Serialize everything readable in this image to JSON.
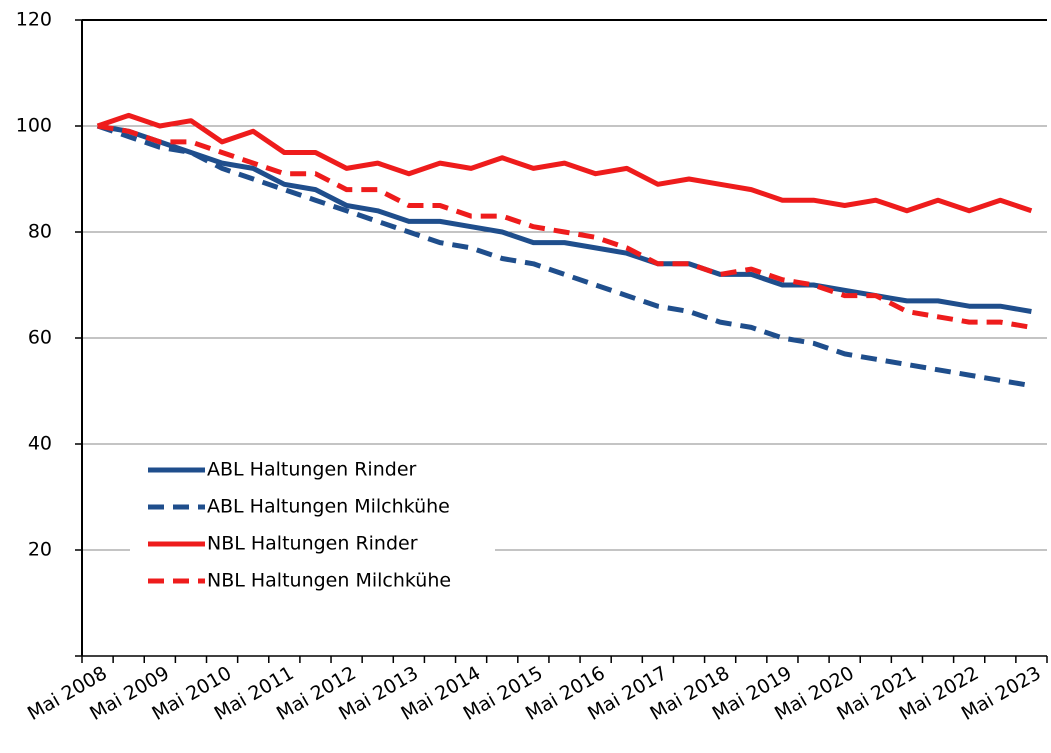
{
  "chart_data": {
    "type": "line",
    "categories": [
      "Mai 2008",
      null,
      "Mai 2009",
      null,
      "Mai 2010",
      null,
      "Mai 2011",
      null,
      "Mai 2012",
      null,
      "Mai 2013",
      null,
      "Mai 2014",
      null,
      "Mai 2015",
      null,
      "Mai 2016",
      null,
      "Mai 2017",
      null,
      "Mai 2018",
      null,
      "Mai 2019",
      null,
      "Mai 2020",
      null,
      "Mai 2021",
      null,
      "Mai 2022",
      null,
      "Mai 2023"
    ],
    "series": [
      {
        "name": "ABL Haltungen Rinder",
        "color": "#1f4e8c",
        "dash": false,
        "values": [
          100,
          99,
          97,
          95,
          93,
          92,
          89,
          88,
          85,
          84,
          82,
          82,
          81,
          80,
          78,
          78,
          77,
          76,
          74,
          74,
          72,
          72,
          70,
          70,
          69,
          68,
          67,
          67,
          66,
          66,
          65
        ]
      },
      {
        "name": "ABL Haltungen Milchkühe",
        "color": "#1f4e8c",
        "dash": true,
        "values": [
          100,
          98,
          96,
          95,
          92,
          90,
          88,
          86,
          84,
          82,
          80,
          78,
          77,
          75,
          74,
          72,
          70,
          68,
          66,
          65,
          63,
          62,
          60,
          59,
          57,
          56,
          55,
          54,
          53,
          52,
          51
        ]
      },
      {
        "name": "NBL Haltungen Rinder",
        "color": "#ee1c1c",
        "dash": false,
        "values": [
          100,
          102,
          100,
          101,
          97,
          99,
          95,
          95,
          92,
          93,
          91,
          93,
          92,
          94,
          92,
          93,
          91,
          92,
          89,
          90,
          89,
          88,
          86,
          86,
          85,
          86,
          84,
          86,
          84,
          86,
          84
        ]
      },
      {
        "name": "NBL Haltungen Milchkühe",
        "color": "#ee1c1c",
        "dash": true,
        "values": [
          100,
          99,
          97,
          97,
          95,
          93,
          91,
          91,
          88,
          88,
          85,
          85,
          83,
          83,
          81,
          80,
          79,
          77,
          74,
          74,
          72,
          73,
          71,
          70,
          68,
          68,
          65,
          64,
          63,
          63,
          62
        ]
      }
    ],
    "ylim": [
      0,
      120
    ],
    "yticks": [
      20,
      40,
      60,
      80,
      100,
      120
    ],
    "grid": true
  }
}
